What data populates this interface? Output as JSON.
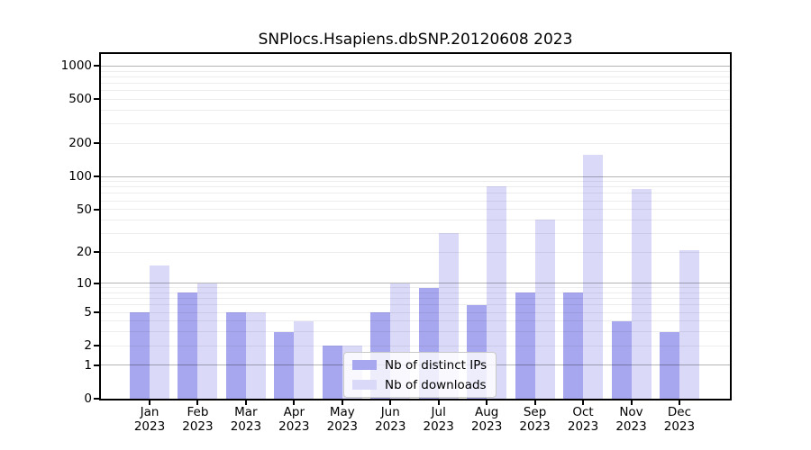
{
  "title": "SNPlocs.Hsapiens.dbSNP.20120608 2023",
  "chart_data": {
    "type": "bar",
    "title": "SNPlocs.Hsapiens.dbSNP.20120608 2023",
    "categories": [
      "Jan 2023",
      "Feb 2023",
      "Mar 2023",
      "Apr 2023",
      "May 2023",
      "Jun 2023",
      "Jul 2023",
      "Aug 2023",
      "Sep 2023",
      "Oct 2023",
      "Nov 2023",
      "Dec 2023"
    ],
    "months": [
      {
        "month": "Jan",
        "year": "2023"
      },
      {
        "month": "Feb",
        "year": "2023"
      },
      {
        "month": "Mar",
        "year": "2023"
      },
      {
        "month": "Apr",
        "year": "2023"
      },
      {
        "month": "May",
        "year": "2023"
      },
      {
        "month": "Jun",
        "year": "2023"
      },
      {
        "month": "Jul",
        "year": "2023"
      },
      {
        "month": "Aug",
        "year": "2023"
      },
      {
        "month": "Sep",
        "year": "2023"
      },
      {
        "month": "Oct",
        "year": "2023"
      },
      {
        "month": "Nov",
        "year": "2023"
      },
      {
        "month": "Dec",
        "year": "2023"
      }
    ],
    "series": [
      {
        "name": "Nb of distinct IPs",
        "color": "#a7a7ef",
        "values": [
          5,
          8,
          5,
          3,
          2,
          5,
          9,
          6,
          8,
          8,
          4,
          3
        ]
      },
      {
        "name": "Nb of downloads",
        "color": "#dadaf8",
        "values": [
          15,
          10,
          5,
          4,
          2,
          10,
          30,
          82,
          40,
          156,
          77,
          21
        ]
      }
    ],
    "xlabel": "",
    "ylabel": "",
    "y_scale": "log1p",
    "y_ticks": [
      0,
      1,
      2,
      5,
      10,
      20,
      50,
      100,
      200,
      500,
      1000
    ],
    "ylim": [
      0,
      1290
    ],
    "grid": "horizontal: light minor lines at 2-9 per decade, darker major lines at 1,10,100,1000",
    "legend_position": "lower center"
  },
  "colors": {
    "bar_distinct_ips": "#a7a7ef",
    "bar_downloads": "#dadaf8",
    "major_grid": "rgba(0,0,0,0.29)",
    "minor_grid": "rgba(0,0,0,0.07)",
    "spine": "#000000",
    "legend_border": "#c9c9c9",
    "legend_background": "rgba(255,255,255,0.8)"
  }
}
